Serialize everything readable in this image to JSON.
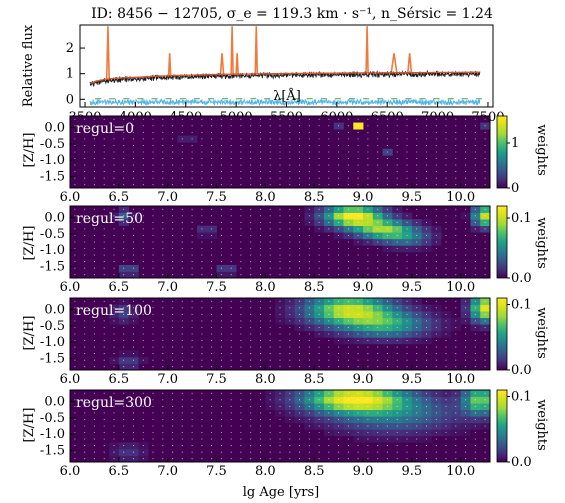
{
  "chart_data": [
    {
      "type": "line",
      "title": "ID: 8456 − 12705,  σ_e = 119.3 km · s⁻¹,  n_Sérsic = 1.24",
      "xlabel": "λ[Å]",
      "ylabel": "Relative flux",
      "xlim": [
        3450,
        7550
      ],
      "ylim": [
        -0.3,
        2.9
      ],
      "x_ticks": [
        "3500",
        "4000",
        "4500",
        "5000",
        "5500",
        "6000",
        "6500",
        "7000",
        "7500"
      ],
      "y_ticks": [
        "0",
        "1",
        "2"
      ],
      "colors": {
        "spectrum": "#1a1a1a",
        "model": "#d9532a",
        "masked": "#f07a3c",
        "residuals": "#4db3e6",
        "goodpix": "#2e7d32"
      },
      "masked_regions": [
        [
          3715,
          3740
        ],
        [
          4330,
          4350
        ],
        [
          4845,
          4875
        ],
        [
          4950,
          4970
        ],
        [
          5000,
          5020
        ],
        [
          5190,
          5210
        ],
        [
          6290,
          6310
        ],
        [
          6540,
          6595
        ],
        [
          6705,
          6740
        ]
      ],
      "series": [
        {
          "x": [
            3550,
            3600,
            3650,
            3700,
            3800,
            3900,
            4000,
            4200,
            4400,
            4600,
            4800,
            5000,
            5200,
            5400,
            5600,
            5800,
            6000,
            6200,
            6400,
            6600,
            6800,
            7000,
            7200,
            7400
          ],
          "values": [
            0.62,
            0.7,
            0.74,
            0.78,
            0.82,
            0.84,
            0.86,
            0.9,
            0.93,
            0.95,
            0.97,
            0.98,
            0.99,
            1.0,
            1.01,
            1.02,
            1.02,
            1.03,
            1.03,
            1.04,
            1.04,
            1.05,
            1.05,
            1.06
          ]
        }
      ],
      "residuals": {
        "level": -0.05,
        "scatter": 0.04
      }
    },
    {
      "type": "heatmap",
      "label": "regul=0",
      "xlim": [
        6.0,
        10.3
      ],
      "ylim": [
        -1.85,
        0.35
      ],
      "ylabel": "[Z/H]",
      "x_ticks": [
        "6.0",
        "6.5",
        "7.0",
        "7.5",
        "8.0",
        "8.5",
        "9.0",
        "9.5",
        "10.0"
      ],
      "y_ticks": [
        "0.0",
        "-0.5",
        "-1.0",
        "-1.5"
      ],
      "colorbar": {
        "label": "weights",
        "ticks": [
          "0",
          "1"
        ],
        "max": 1.6
      },
      "blobs": [
        {
          "age": 8.95,
          "z": 0.05,
          "value": 1.6,
          "sa": 0.01,
          "sz": 0.01
        },
        {
          "age": 8.75,
          "z": 0.1,
          "value": 0.2,
          "sa": 0.01,
          "sz": 0.01
        },
        {
          "age": 10.25,
          "z": 0.1,
          "value": 0.22,
          "sa": 0.01,
          "sz": 0.01
        },
        {
          "age": 9.22,
          "z": -0.72,
          "value": 0.28,
          "sa": 0.01,
          "sz": 0.01
        },
        {
          "age": 7.2,
          "z": -0.28,
          "value": 0.12,
          "sa": 0.01,
          "sz": 0.01
        }
      ]
    },
    {
      "type": "heatmap",
      "label": "regul=50",
      "xlim": [
        6.0,
        10.3
      ],
      "ylim": [
        -1.85,
        0.35
      ],
      "ylabel": "[Z/H]",
      "x_ticks": [
        "6.0",
        "6.5",
        "7.0",
        "7.5",
        "8.0",
        "8.5",
        "9.0",
        "9.5",
        "10.0"
      ],
      "y_ticks": [
        "0.0",
        "-0.5",
        "-1.0",
        "-1.5"
      ],
      "colorbar": {
        "label": "weights",
        "ticks": [
          "0.0",
          "0.1"
        ],
        "max": 0.12
      },
      "blobs": [
        {
          "age": 8.9,
          "z": 0.05,
          "value": 0.12,
          "sa": 0.2,
          "sz": 0.22
        },
        {
          "age": 9.2,
          "z": -0.35,
          "value": 0.08,
          "sa": 0.2,
          "sz": 0.2
        },
        {
          "age": 9.45,
          "z": -0.6,
          "value": 0.04,
          "sa": 0.18,
          "sz": 0.2
        },
        {
          "age": 10.25,
          "z": 0.05,
          "value": 0.1,
          "sa": 0.08,
          "sz": 0.22
        },
        {
          "age": 6.55,
          "z": 0.05,
          "value": 0.03,
          "sa": 0.06,
          "sz": 0.15
        },
        {
          "age": 6.6,
          "z": -1.6,
          "value": 0.03,
          "sa": 0.07,
          "sz": 0.12
        },
        {
          "age": 7.6,
          "z": -1.6,
          "value": 0.025,
          "sa": 0.07,
          "sz": 0.1
        },
        {
          "age": 7.4,
          "z": -0.4,
          "value": 0.02,
          "sa": 0.07,
          "sz": 0.1
        }
      ]
    },
    {
      "type": "heatmap",
      "label": "regul=100",
      "xlim": [
        6.0,
        10.3
      ],
      "ylim": [
        -1.85,
        0.35
      ],
      "ylabel": "[Z/H]",
      "x_ticks": [
        "6.0",
        "6.5",
        "7.0",
        "7.5",
        "8.0",
        "8.5",
        "9.0",
        "9.5",
        "10.0"
      ],
      "y_ticks": [
        "0.0",
        "-0.5",
        "-1.0",
        "-1.5"
      ],
      "colorbar": {
        "label": "weights",
        "ticks": [
          "0.0",
          "0.1"
        ],
        "max": 0.11
      },
      "blobs": [
        {
          "age": 8.85,
          "z": 0.0,
          "value": 0.09,
          "sa": 0.3,
          "sz": 0.32
        },
        {
          "age": 9.25,
          "z": -0.45,
          "value": 0.055,
          "sa": 0.3,
          "sz": 0.28
        },
        {
          "age": 10.25,
          "z": 0.05,
          "value": 0.1,
          "sa": 0.1,
          "sz": 0.28
        },
        {
          "age": 6.55,
          "z": -0.1,
          "value": 0.02,
          "sa": 0.08,
          "sz": 0.2
        },
        {
          "age": 6.6,
          "z": -1.6,
          "value": 0.02,
          "sa": 0.09,
          "sz": 0.15
        }
      ]
    },
    {
      "type": "heatmap",
      "label": "regul=300",
      "xlim": [
        6.0,
        10.3
      ],
      "ylim": [
        -1.85,
        0.35
      ],
      "ylabel": "[Z/H]",
      "xlabel": "lg Age [yrs]",
      "x_ticks": [
        "6.0",
        "6.5",
        "7.0",
        "7.5",
        "8.0",
        "8.5",
        "9.0",
        "9.5",
        "10.0"
      ],
      "y_ticks": [
        "0.0",
        "-0.5",
        "-1.0",
        "-1.5"
      ],
      "colorbar": {
        "label": "weights",
        "ticks": [
          "0.0",
          "0.1"
        ],
        "max": 0.11
      },
      "blobs": [
        {
          "age": 8.9,
          "z": 0.1,
          "value": 0.1,
          "sa": 0.35,
          "sz": 0.28
        },
        {
          "age": 9.3,
          "z": -0.35,
          "value": 0.04,
          "sa": 0.45,
          "sz": 0.4
        },
        {
          "age": 10.2,
          "z": 0.05,
          "value": 0.075,
          "sa": 0.12,
          "sz": 0.3
        },
        {
          "age": 6.6,
          "z": -1.55,
          "value": 0.015,
          "sa": 0.12,
          "sz": 0.2
        }
      ]
    }
  ]
}
